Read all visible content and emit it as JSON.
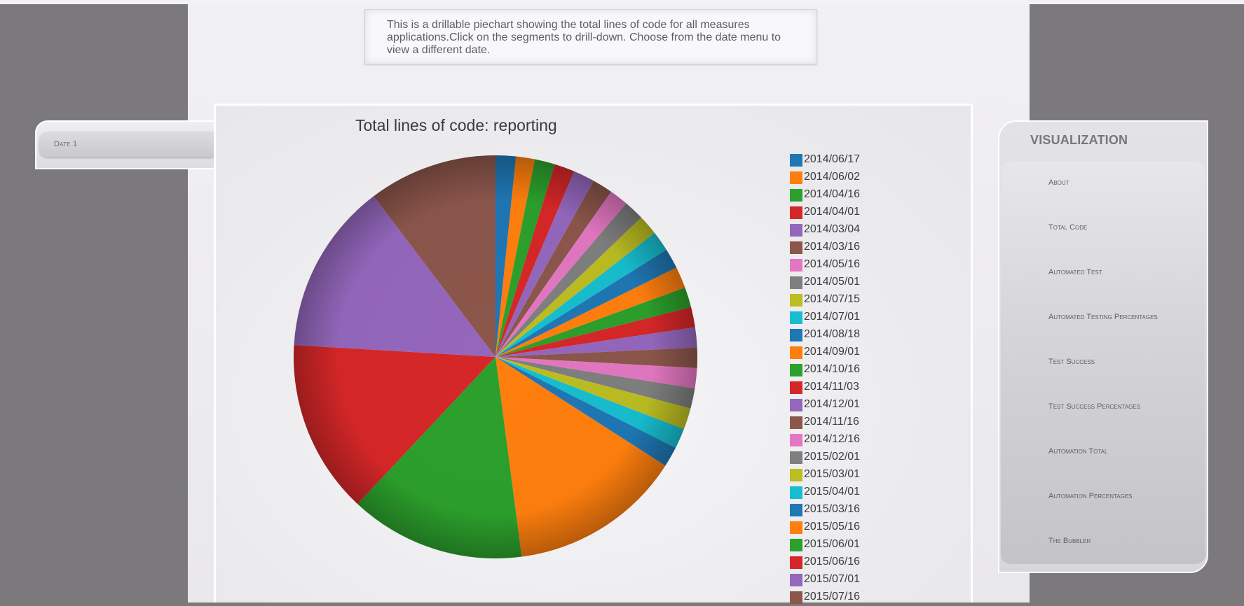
{
  "description": "This is a drillable piechart showing the total lines of code for all measures applications.Click on the segments to drill-down. Choose from the date menu to view a different date.",
  "date_menu": {
    "button_label": "Date 1"
  },
  "visualization_menu": {
    "title": "VISUALIZATION",
    "items": [
      "About",
      "Total Code",
      "Automated Test",
      "Automated Testing Percentages",
      "Test Success",
      "Test Success Percentages",
      "Automation Total",
      "Automation Percentages",
      "The Bubbler"
    ]
  },
  "chart_data": {
    "type": "pie",
    "title": "Total lines of code: reporting",
    "legend_position": "right",
    "note": "Values estimated from slice angles, in percent of the total.",
    "slices": [
      {
        "label": "2014/06/17",
        "value": 1.6,
        "color": "#1f77b4"
      },
      {
        "label": "2014/06/02",
        "value": 1.5,
        "color": "#ff7f0e"
      },
      {
        "label": "2014/04/16",
        "value": 1.6,
        "color": "#2ca02c"
      },
      {
        "label": "2014/04/01",
        "value": 1.6,
        "color": "#d62728"
      },
      {
        "label": "2014/03/04",
        "value": 1.7,
        "color": "#9467bd"
      },
      {
        "label": "2014/03/16",
        "value": 1.6,
        "color": "#8c564b"
      },
      {
        "label": "2014/05/16",
        "value": 1.5,
        "color": "#e377c2"
      },
      {
        "label": "2014/05/01",
        "value": 1.6,
        "color": "#7f7f7f"
      },
      {
        "label": "2014/07/15",
        "value": 1.6,
        "color": "#bcbd22"
      },
      {
        "label": "2014/07/01",
        "value": 1.6,
        "color": "#17becf"
      },
      {
        "label": "2014/08/18",
        "value": 1.6,
        "color": "#1f77b4"
      },
      {
        "label": "2014/09/01",
        "value": 1.7,
        "color": "#ff7f0e"
      },
      {
        "label": "2014/10/16",
        "value": 1.6,
        "color": "#2ca02c"
      },
      {
        "label": "2014/11/03",
        "value": 1.6,
        "color": "#d62728"
      },
      {
        "label": "2014/12/01",
        "value": 1.6,
        "color": "#9467bd"
      },
      {
        "label": "2014/11/16",
        "value": 1.6,
        "color": "#8c564b"
      },
      {
        "label": "2014/12/16",
        "value": 1.6,
        "color": "#e377c2"
      },
      {
        "label": "2015/02/01",
        "value": 1.6,
        "color": "#7f7f7f"
      },
      {
        "label": "2015/03/01",
        "value": 1.7,
        "color": "#bcbd22"
      },
      {
        "label": "2015/04/01",
        "value": 1.6,
        "color": "#17becf"
      },
      {
        "label": "2015/03/16",
        "value": 1.6,
        "color": "#1f77b4"
      },
      {
        "label": "2015/05/16",
        "value": 13.7,
        "color": "#ff7f0e"
      },
      {
        "label": "2015/06/01",
        "value": 13.9,
        "color": "#2ca02c"
      },
      {
        "label": "2015/06/16",
        "value": 13.8,
        "color": "#d62728"
      },
      {
        "label": "2015/07/01",
        "value": 13.6,
        "color": "#9467bd"
      },
      {
        "label": "2015/07/16",
        "value": 10.2,
        "color": "#8c564b"
      }
    ]
  }
}
